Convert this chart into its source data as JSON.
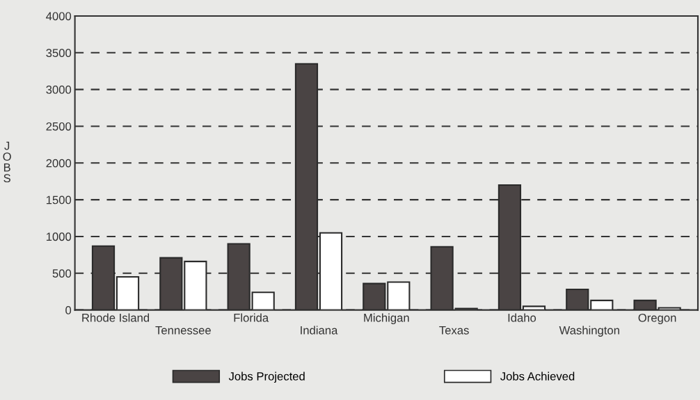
{
  "chart_data": {
    "type": "bar",
    "ylabel": "JOBS",
    "categories": [
      "Rhode Island",
      "Tennessee",
      "Florida",
      "Indiana",
      "Michigan",
      "Texas",
      "Idaho",
      "Washington",
      "Oregon"
    ],
    "series": [
      {
        "name": "Jobs Projected",
        "color": "#4a4444",
        "values": [
          870,
          710,
          900,
          3350,
          360,
          860,
          1700,
          280,
          130
        ]
      },
      {
        "name": "Jobs Achieved",
        "color": "#ffffff",
        "values": [
          450,
          660,
          240,
          1050,
          380,
          20,
          50,
          130,
          30
        ]
      }
    ],
    "ylim": [
      0,
      4000
    ],
    "yticks": [
      0,
      500,
      1000,
      1500,
      2000,
      2500,
      3000,
      3500,
      4000
    ],
    "grid": "y",
    "legend": "bottom"
  }
}
